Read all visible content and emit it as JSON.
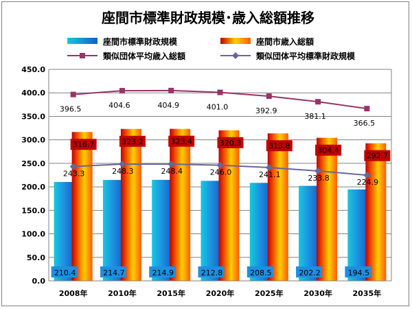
{
  "chart_data": {
    "type": "bar",
    "title": "座間市標準財政規模･歳入総額推移",
    "categories": [
      "2008年",
      "2010年",
      "2015年",
      "2020年",
      "2025年",
      "2030年",
      "2035年"
    ],
    "ylim": [
      0,
      450
    ],
    "yticks": [
      "0.0",
      "50.0",
      "100.0",
      "150.0",
      "200.0",
      "250.0",
      "300.0",
      "350.0",
      "400.0",
      "450.0"
    ],
    "legend_position": "top",
    "bar_series": [
      {
        "name": "座間市標準財政規模",
        "values": [
          210.4,
          214.7,
          214.9,
          212.8,
          208.5,
          202.2,
          194.5
        ],
        "labels": [
          "210.4",
          "214.7",
          "214.9",
          "212.8",
          "208.5",
          "202.2",
          "194.5"
        ],
        "color": "#1e8fe0"
      },
      {
        "name": "座間市歳入総額",
        "values": [
          316.7,
          323.2,
          323.4,
          320.3,
          313.8,
          304.4,
          292.7
        ],
        "labels": [
          "316.7",
          "323.2",
          "323.4",
          "320.3",
          "313.8",
          "304.4",
          "292.7"
        ],
        "color": "#ff7a00"
      }
    ],
    "line_series": [
      {
        "name": "類似団体平均歳入総額",
        "values": [
          396.5,
          404.6,
          404.9,
          401.0,
          392.9,
          381.1,
          366.5
        ],
        "labels": [
          "396.5",
          "404.6",
          "404.9",
          "401.0",
          "392.9",
          "381.1",
          "366.5"
        ],
        "color": "#993366",
        "marker": "square"
      },
      {
        "name": "類似団体平均標準財政規模",
        "values": [
          243.3,
          248.3,
          248.4,
          246.0,
          241.1,
          233.8,
          224.9
        ],
        "labels": [
          "243.3",
          "248.3",
          "248.4",
          "246.0",
          "241.1",
          "233.8",
          "224.9"
        ],
        "color": "#666699",
        "marker": "diamond"
      }
    ]
  }
}
